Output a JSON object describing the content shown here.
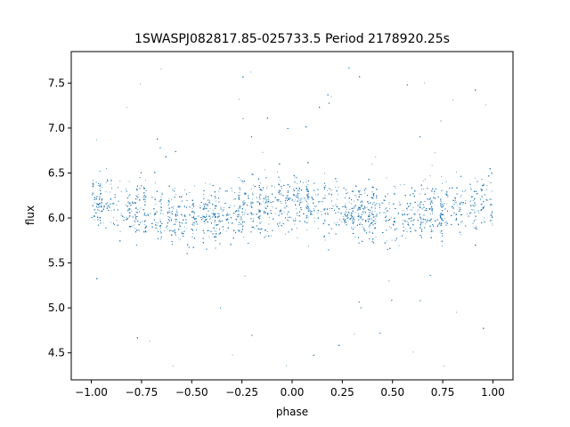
{
  "chart_data": {
    "type": "scatter",
    "title": "1SWASPJ082817.85-025733.5 Period 2178920.25s",
    "xlabel": "phase",
    "ylabel": "flux",
    "xlim": [
      -1.1,
      1.1
    ],
    "ylim": [
      4.2,
      7.85
    ],
    "x_ticks": [
      -1.0,
      -0.75,
      -0.5,
      -0.25,
      0.0,
      0.25,
      0.5,
      0.75,
      1.0
    ],
    "x_tick_labels": [
      "−1.00",
      "−0.75",
      "−0.50",
      "−0.25",
      "0.00",
      "0.25",
      "0.50",
      "0.75",
      "1.00"
    ],
    "y_ticks": [
      4.5,
      5.0,
      5.5,
      6.0,
      6.5,
      7.0,
      7.5
    ],
    "y_tick_labels": [
      "4.5",
      "5.0",
      "5.5",
      "6.0",
      "6.5",
      "7.0",
      "7.5"
    ],
    "grid": false,
    "point_color": "#1f77b4",
    "series_summary": {
      "phase_range": [
        -1.0,
        1.0
      ],
      "flux_core_mean": 6.1,
      "flux_core_spread": [
        5.6,
        6.6
      ],
      "flux_outlier_range": [
        4.35,
        7.8
      ],
      "description_points": [
        {
          "phase": -1.0,
          "flux": 6.2
        },
        {
          "phase": -0.9,
          "flux": 6.15
        },
        {
          "phase": -0.75,
          "flux": 6.05
        },
        {
          "phase": -0.6,
          "flux": 5.95
        },
        {
          "phase": -0.5,
          "flux": 6.0
        },
        {
          "phase": -0.25,
          "flux": 6.05
        },
        {
          "phase": -0.1,
          "flux": 6.15
        },
        {
          "phase": 0.0,
          "flux": 6.2
        },
        {
          "phase": 0.1,
          "flux": 6.15
        },
        {
          "phase": 0.25,
          "flux": 6.05
        },
        {
          "phase": 0.4,
          "flux": 5.95
        },
        {
          "phase": 0.5,
          "flux": 6.0
        },
        {
          "phase": 0.75,
          "flux": 6.05
        },
        {
          "phase": 0.9,
          "flux": 6.15
        },
        {
          "phase": 1.0,
          "flux": 6.2
        }
      ]
    }
  }
}
